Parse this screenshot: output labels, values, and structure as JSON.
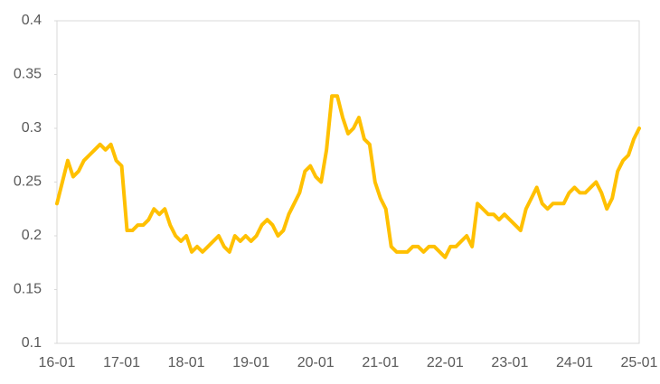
{
  "chart_data": {
    "type": "line",
    "categories": [
      "16-01",
      null,
      null,
      null,
      null,
      null,
      null,
      null,
      null,
      null,
      null,
      null,
      "17-01",
      null,
      null,
      null,
      null,
      null,
      null,
      null,
      null,
      null,
      null,
      null,
      "18-01",
      null,
      null,
      null,
      null,
      null,
      null,
      null,
      null,
      null,
      null,
      null,
      "19-01",
      null,
      null,
      null,
      null,
      null,
      null,
      null,
      null,
      null,
      null,
      null,
      "20-01",
      null,
      null,
      null,
      null,
      null,
      null,
      null,
      null,
      null,
      null,
      null,
      "21-01",
      null,
      null,
      null,
      null,
      null,
      null,
      null,
      null,
      null,
      null,
      null,
      "22-01",
      null,
      null,
      null,
      null,
      null,
      null,
      null,
      null,
      null,
      null,
      null,
      "23-01",
      null,
      null,
      null,
      null,
      null,
      null,
      null,
      null,
      null,
      null,
      null,
      "24-01",
      null,
      null,
      null,
      null,
      null,
      null,
      null,
      null,
      null,
      null,
      null,
      "25-01"
    ],
    "values": [
      0.23,
      0.25,
      0.27,
      0.255,
      0.26,
      0.27,
      0.275,
      0.28,
      0.285,
      0.28,
      0.285,
      0.27,
      0.265,
      0.205,
      0.205,
      0.21,
      0.21,
      0.215,
      0.225,
      0.22,
      0.225,
      0.21,
      0.2,
      0.195,
      0.2,
      0.185,
      0.19,
      0.185,
      0.19,
      0.195,
      0.2,
      0.19,
      0.185,
      0.2,
      0.195,
      0.2,
      0.195,
      0.2,
      0.21,
      0.215,
      0.21,
      0.2,
      0.205,
      0.22,
      0.23,
      0.24,
      0.26,
      0.265,
      0.255,
      0.25,
      0.28,
      0.33,
      0.33,
      0.31,
      0.295,
      0.3,
      0.31,
      0.29,
      0.285,
      0.25,
      0.235,
      0.225,
      0.19,
      0.185,
      0.185,
      0.185,
      0.19,
      0.19,
      0.185,
      0.19,
      0.19,
      0.185,
      0.18,
      0.19,
      0.19,
      0.195,
      0.2,
      0.19,
      0.23,
      0.225,
      0.22,
      0.22,
      0.215,
      0.22,
      0.215,
      0.21,
      0.205,
      0.225,
      0.235,
      0.245,
      0.23,
      0.225,
      0.23,
      0.23,
      0.23,
      0.24,
      0.245,
      0.24,
      0.24,
      0.245,
      0.25,
      0.24,
      0.225,
      0.235,
      0.26,
      0.27,
      0.275,
      0.29,
      0.3
    ],
    "color": "#FFC000",
    "ylim": [
      0.1,
      0.4
    ],
    "yticks": [
      0.1,
      0.15,
      0.2,
      0.25,
      0.3,
      0.35,
      0.4
    ]
  }
}
